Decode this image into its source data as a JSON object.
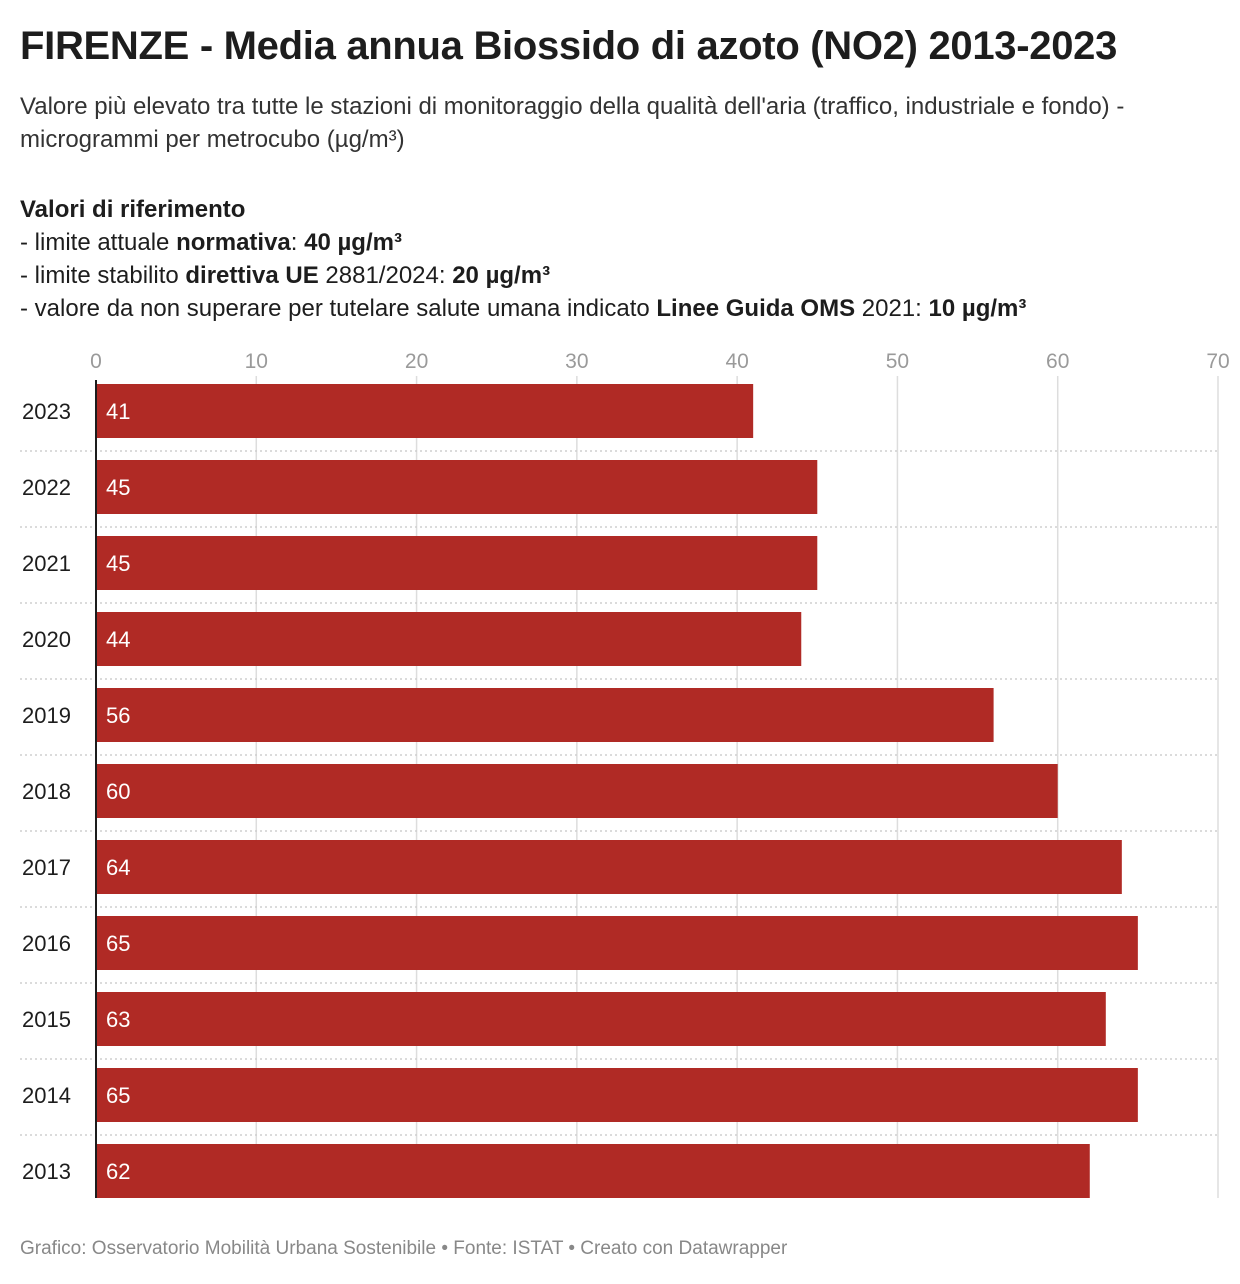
{
  "title": "FIRENZE - Media annua Biossido di azoto (NO2) 2013-2023",
  "subtitle": "Valore più elevato tra tutte le stazioni di monitoraggio della qualità dell'aria (traffico, industriale e fondo) - microgrammi per metrocubo (µg/m³)",
  "references": {
    "heading": "Valori di riferimento",
    "line1": {
      "pre": "- limite attuale ",
      "bold1": "normativa",
      "mid": ": ",
      "bold2": "40 µg/m³"
    },
    "line2": {
      "pre": "- limite stabilito ",
      "bold1": "direttiva UE",
      "mid": " 2881/2024: ",
      "bold2": "20 µg/m³"
    },
    "line3": {
      "pre": "- valore da non superare per tutelare salute umana indicato ",
      "bold1": "Linee Guida OMS",
      "mid": " 2021: ",
      "bold2": "10 µg/m³"
    }
  },
  "footer": "Grafico: Osservatorio Mobilità Urbana Sostenibile • Fonte: ISTAT • Creato con Datawrapper",
  "colors": {
    "bar": "#b02a25",
    "grid": "#dddddd",
    "axis": "#1d1d1d"
  },
  "chart_data": {
    "type": "bar",
    "orientation": "horizontal",
    "categories": [
      "2023",
      "2022",
      "2021",
      "2020",
      "2019",
      "2018",
      "2017",
      "2016",
      "2015",
      "2014",
      "2013"
    ],
    "values": [
      41,
      45,
      45,
      44,
      56,
      60,
      64,
      65,
      63,
      65,
      62
    ],
    "xlim": [
      0,
      70
    ],
    "xticks": [
      0,
      10,
      20,
      30,
      40,
      50,
      60,
      70
    ],
    "grid": true,
    "value_labels": "inside-left"
  }
}
